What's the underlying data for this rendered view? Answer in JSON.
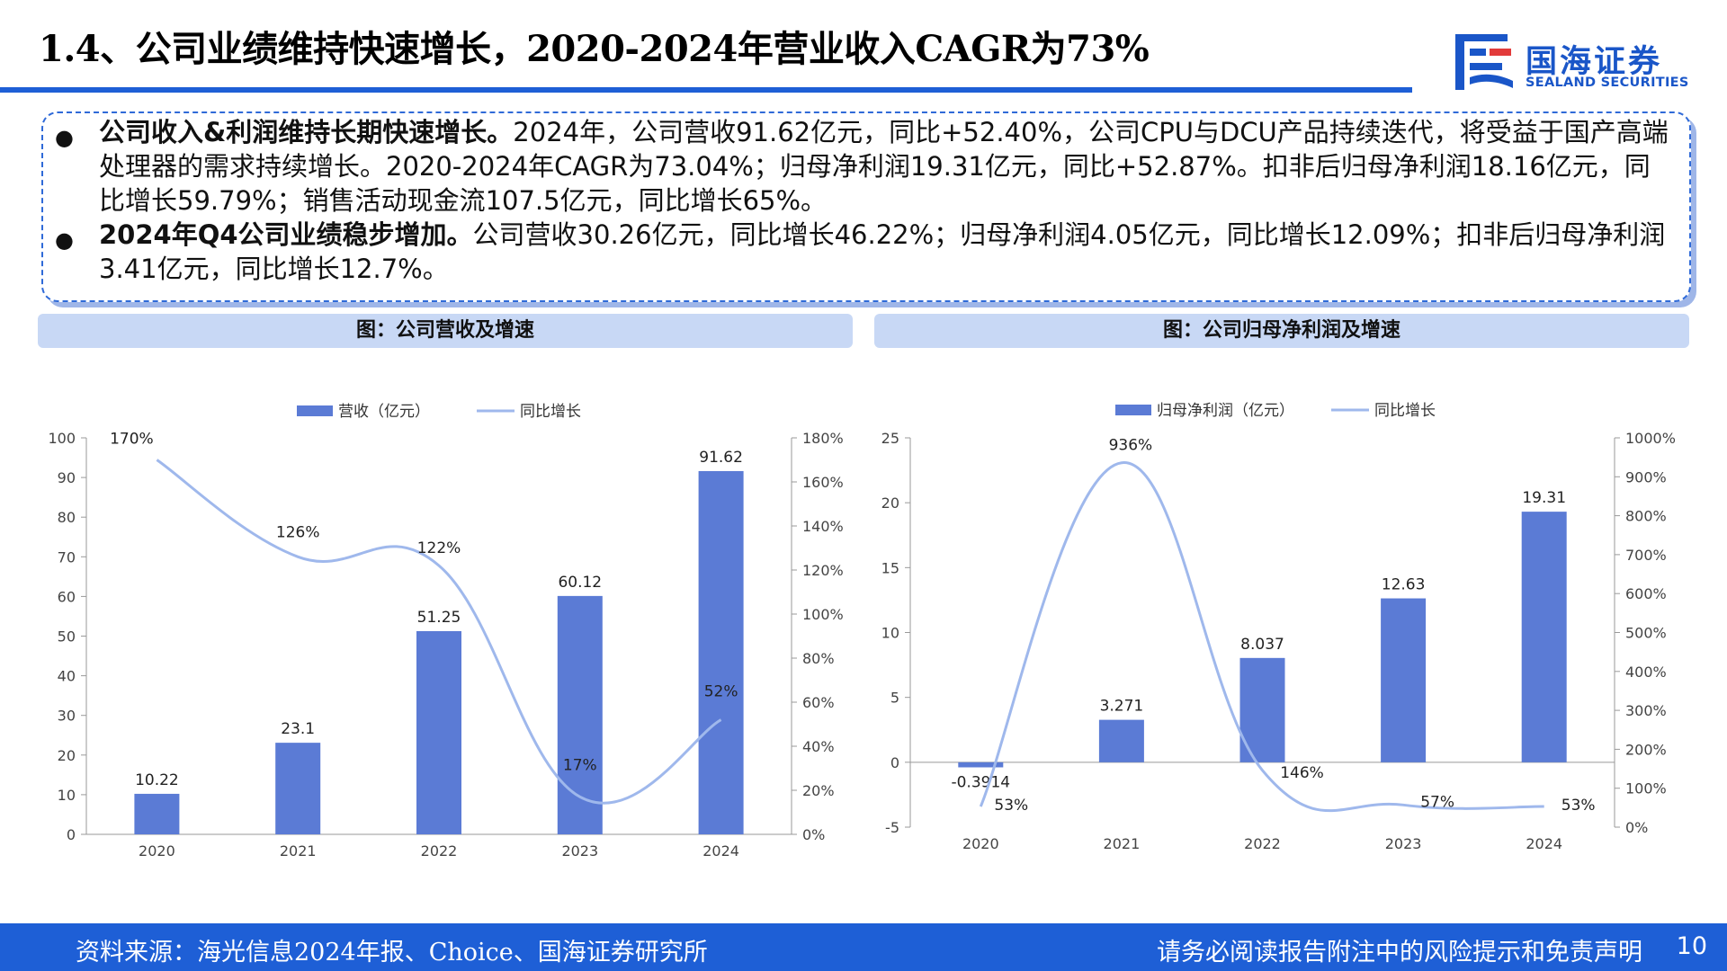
{
  "header": {
    "title": "1.4、公司业绩维持快速增长，2020-2024年营业收入CAGR为73%",
    "logo_cn": "国海证券",
    "logo_en": "SEALAND SECURITIES",
    "brand_color": "#1e5fd6"
  },
  "summary": {
    "bullets": [
      {
        "head": "公司收入&利润维持长期快速增长。",
        "body": "2024年，公司营收91.62亿元，同比+52.40%，公司CPU与DCU产品持续迭代，将受益于国产高端处理器的需求持续增长。2020-2024年CAGR为73.04%；归母净利润19.31亿元，同比+52.87%。扣非后归母净利润18.16亿元，同比增长59.79%；销售活动现金流107.5亿元，同比增长65%。"
      },
      {
        "head": "2024年Q4公司业绩稳步增加。",
        "body": "公司营收30.26亿元，同比增长46.22%；归母净利润4.05亿元，同比增长12.09%；扣非后归母净利润3.41亿元，同比增长12.7%。"
      }
    ]
  },
  "panels": {
    "left_title": "图：公司营收及增速",
    "right_title": "图：公司归母净利润及增速"
  },
  "chart_data": [
    {
      "type": "bar",
      "title": "",
      "categories": [
        "2020",
        "2021",
        "2022",
        "2023",
        "2024"
      ],
      "series": [
        {
          "name": "营收（亿元）",
          "type": "bar",
          "axis": "left",
          "values": [
            10.22,
            23.1,
            51.25,
            60.12,
            91.62
          ],
          "labels": [
            "10.22",
            "23.1",
            "51.25",
            "60.12",
            "91.62"
          ],
          "color": "#5b7bd5"
        },
        {
          "name": "同比增长",
          "type": "line",
          "axis": "right",
          "values": [
            170,
            126,
            122,
            17,
            52
          ],
          "labels": [
            "170%",
            "126%",
            "122%",
            "17%",
            "52%"
          ],
          "color": "#9fb8ec"
        }
      ],
      "ylim": [
        0,
        100
      ],
      "yticks": [
        0,
        10,
        20,
        30,
        40,
        50,
        60,
        70,
        80,
        90,
        100
      ],
      "y2lim": [
        0,
        180
      ],
      "y2ticks": [
        "0%",
        "20%",
        "40%",
        "60%",
        "80%",
        "100%",
        "120%",
        "140%",
        "160%",
        "180%"
      ],
      "legend": "top-center",
      "grid": false
    },
    {
      "type": "bar",
      "title": "",
      "categories": [
        "2020",
        "2021",
        "2022",
        "2023",
        "2024"
      ],
      "series": [
        {
          "name": "归母净利润（亿元）",
          "type": "bar",
          "axis": "left",
          "values": [
            -0.3914,
            3.271,
            8.037,
            12.63,
            19.31
          ],
          "labels": [
            "-0.3914",
            "3.271",
            "8.037",
            "12.63",
            "19.31"
          ],
          "color": "#5b7bd5"
        },
        {
          "name": "同比增长",
          "type": "line",
          "axis": "right",
          "values": [
            53,
            936,
            146,
            57,
            53
          ],
          "labels": [
            "53%",
            "936%",
            "146%",
            "57%",
            "53%"
          ],
          "color": "#9fb8ec"
        }
      ],
      "ylim": [
        -5,
        25
      ],
      "yticks": [
        -5,
        0,
        5,
        10,
        15,
        20,
        25
      ],
      "y2lim": [
        0,
        1000
      ],
      "y2ticks": [
        "0%",
        "100%",
        "200%",
        "300%",
        "400%",
        "500%",
        "600%",
        "700%",
        "800%",
        "900%",
        "1000%"
      ],
      "legend": "top-center",
      "grid": false
    }
  ],
  "footer": {
    "source": "资料来源：海光信息2024年报、Choice、国海证券研究所",
    "disclaimer": "请务必阅读报告附注中的风险提示和免责声明",
    "page": "10"
  }
}
